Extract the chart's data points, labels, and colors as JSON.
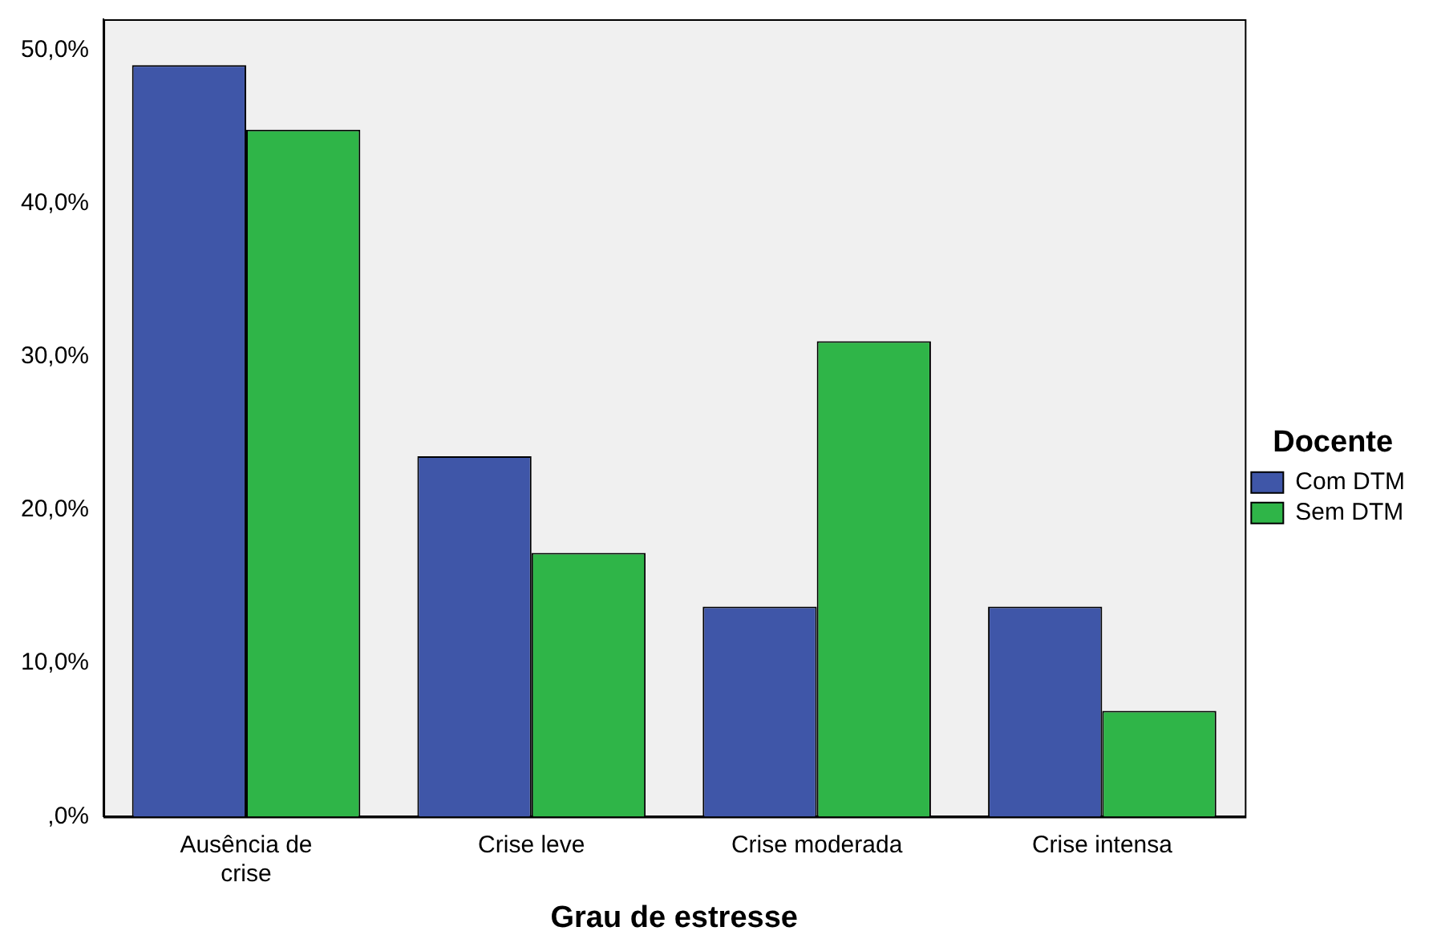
{
  "chart_data": {
    "type": "bar",
    "xlabel": "Grau de estresse",
    "legend_title": "Docente",
    "legend": "right",
    "grid": false,
    "categories": [
      "Ausência de crise",
      "Crise leve",
      "Crise moderada",
      "Crise intensa"
    ],
    "series": [
      {
        "name": "Com DTM",
        "color": "#3f56a8",
        "values": [
          49.0,
          23.5,
          13.7,
          13.7
        ]
      },
      {
        "name": "Sem DTM",
        "color": "#2fb548",
        "values": [
          44.8,
          17.2,
          31.0,
          6.9
        ]
      }
    ],
    "ylim": [
      0,
      52
    ],
    "yticks": [
      {
        "value": 0,
        "label": ",0%"
      },
      {
        "value": 10,
        "label": "10,0%"
      },
      {
        "value": 20,
        "label": "20,0%"
      },
      {
        "value": 30,
        "label": "30,0%"
      },
      {
        "value": 40,
        "label": "40,0%"
      },
      {
        "value": 50,
        "label": "50,0%"
      }
    ]
  }
}
